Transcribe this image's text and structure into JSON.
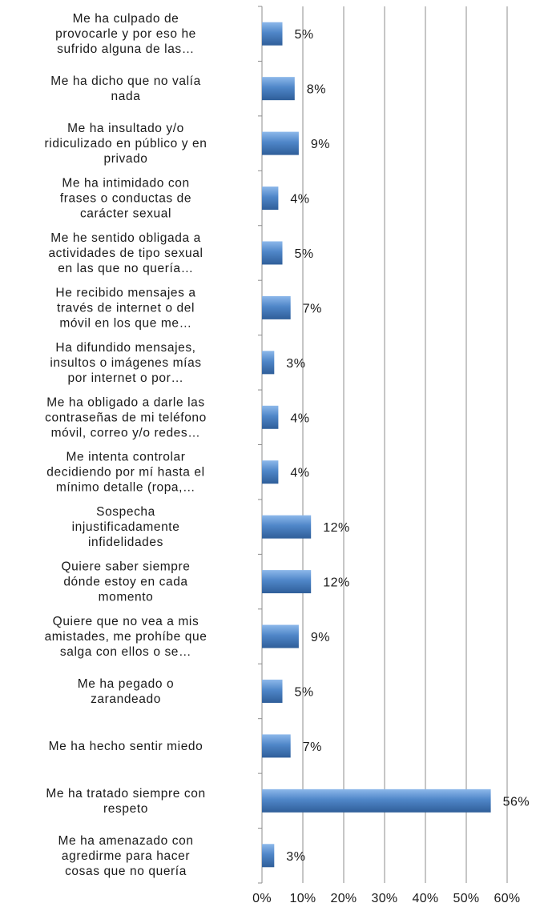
{
  "chart_data": {
    "type": "bar",
    "orientation": "horizontal",
    "categories": [
      [
        "Me ha culpado de",
        "provocarle y por eso he",
        "sufrido alguna de las…"
      ],
      [
        "Me ha dicho que no valía",
        "nada"
      ],
      [
        "Me ha insultado y/o",
        "ridiculizado en público y en",
        "privado"
      ],
      [
        "Me ha intimidado con",
        "frases o conductas de",
        "carácter sexual"
      ],
      [
        "Me he sentido obligada a",
        "actividades de tipo sexual",
        "en las que no quería…"
      ],
      [
        "He recibido mensajes a",
        "través de internet o del",
        "móvil en los que me…"
      ],
      [
        "Ha difundido mensajes,",
        "insultos o imágenes mías",
        "por internet o por…"
      ],
      [
        "Me ha obligado a darle las",
        "contraseñas de mi teléfono",
        "móvil, correo y/o redes…"
      ],
      [
        "Me intenta controlar",
        "decidiendo por mí hasta el",
        "mínimo detalle (ropa,…"
      ],
      [
        "Sospecha",
        "injustificadamente",
        "infidelidades"
      ],
      [
        "Quiere saber siempre",
        "dónde estoy en cada",
        "momento"
      ],
      [
        "Quiere que no vea a mis",
        "amistades, me prohíbe que",
        "salga con ellos o se…"
      ],
      [
        "Me ha pegado o",
        "zarandeado"
      ],
      [
        "Me ha hecho sentir miedo"
      ],
      [
        "Me ha tratado siempre con",
        "respeto"
      ],
      [
        "Me ha amenazado con",
        "agredirme para hacer",
        "cosas que no quería"
      ]
    ],
    "values": [
      5,
      8,
      9,
      4,
      5,
      7,
      3,
      4,
      4,
      12,
      12,
      9,
      5,
      7,
      56,
      3
    ],
    "data_labels": [
      "5%",
      "8%",
      "9%",
      "4%",
      "5%",
      "7%",
      "3%",
      "4%",
      "4%",
      "12%",
      "12%",
      "9%",
      "5%",
      "7%",
      "56%",
      "3%"
    ],
    "x_ticks": [
      "0%",
      "10%",
      "20%",
      "30%",
      "40%",
      "50%",
      "60%"
    ],
    "xlim": [
      0,
      60
    ],
    "grid": true,
    "colors": {
      "bar": "#4f86c8",
      "bar_light": "#8db8ea",
      "bar_dark": "#2f5e99",
      "grid": "#8c8c8c",
      "text": "#1a1a1a"
    }
  }
}
